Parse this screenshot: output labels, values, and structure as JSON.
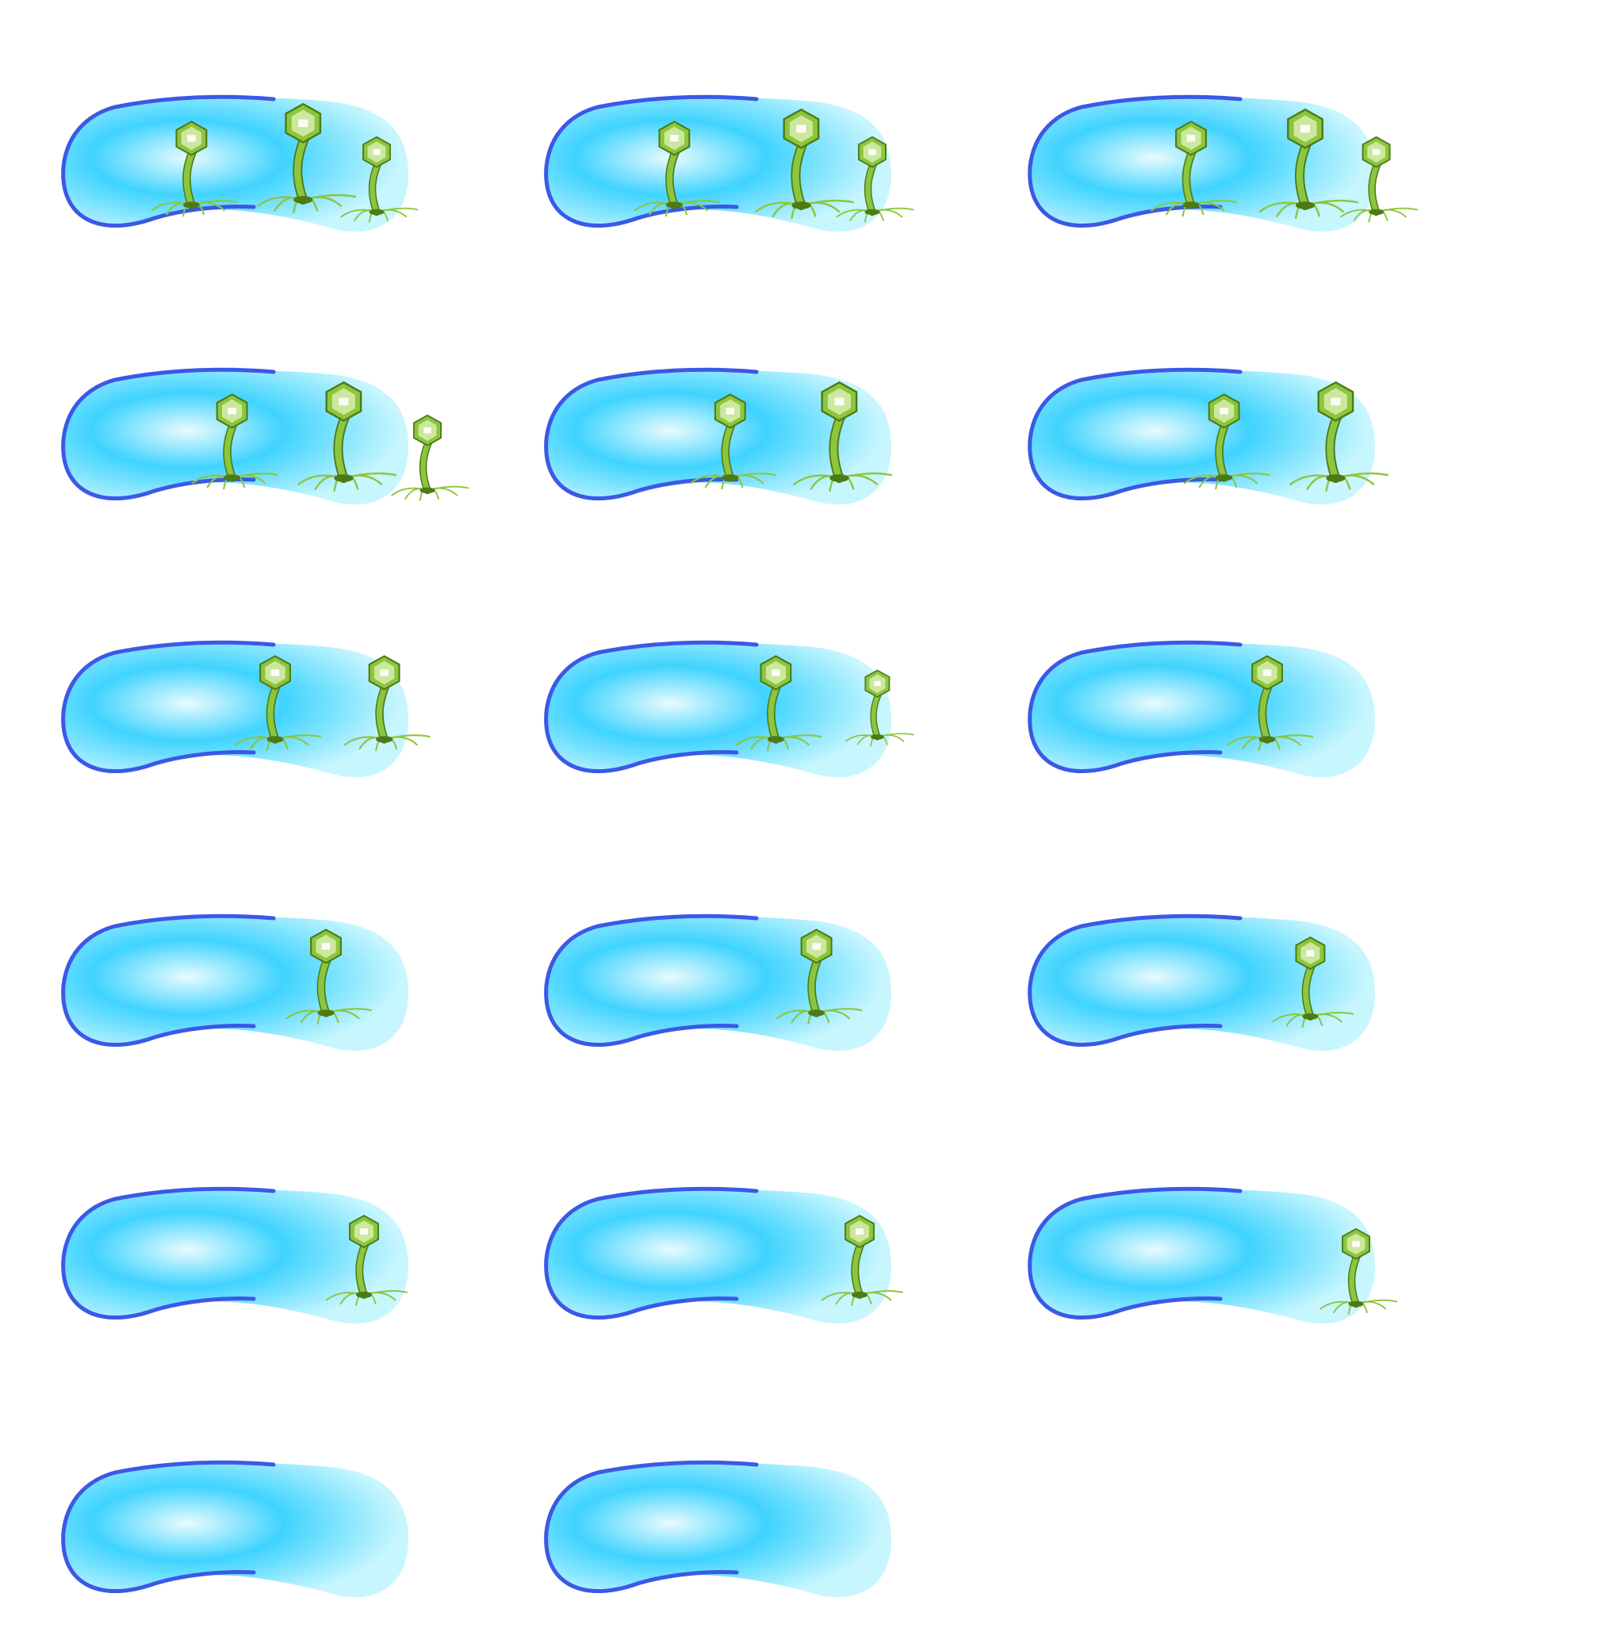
{
  "scene": {
    "description_visible_text": "",
    "colors": {
      "background": "#ffffff",
      "cell_fill_center": "#e8fbff",
      "cell_fill_mid": "#3fd3ff",
      "cell_fill_edge": "#c8f6ff",
      "cell_membrane": "#3b58e6",
      "phage_body": "#8cc63f",
      "phage_dark": "#4e7a14",
      "phage_highlight": "#e8f7c8"
    },
    "icon": "bacteriophage-infecting-bacterium",
    "frames": [
      {
        "phages": [
          [
            0.52,
            0.45,
            1.0
          ],
          [
            0.96,
            0.35,
            1.15
          ],
          [
            1.25,
            0.55,
            0.9
          ]
        ]
      },
      {
        "phages": [
          [
            0.52,
            0.45,
            1.0
          ],
          [
            1.02,
            0.4,
            1.15
          ],
          [
            1.3,
            0.55,
            0.9
          ]
        ]
      },
      {
        "phages": [
          [
            0.65,
            0.45,
            1.0
          ],
          [
            1.1,
            0.4,
            1.15
          ],
          [
            1.38,
            0.55,
            0.9
          ]
        ]
      },
      {
        "phages": [
          [
            0.68,
            0.45,
            1.0
          ],
          [
            1.12,
            0.4,
            1.15
          ],
          [
            1.45,
            0.6,
            0.9
          ]
        ]
      },
      {
        "phages": [
          [
            0.74,
            0.45,
            1.0
          ],
          [
            1.17,
            0.4,
            1.15
          ]
        ]
      },
      {
        "phages": [
          [
            0.78,
            0.45,
            1.0
          ],
          [
            1.22,
            0.4,
            1.15
          ]
        ]
      },
      {
        "phages": [
          [
            0.85,
            0.35,
            1.0
          ],
          [
            1.28,
            0.35,
            1.0
          ]
        ]
      },
      {
        "phages": [
          [
            0.92,
            0.35,
            1.0
          ],
          [
            1.32,
            0.4,
            0.8
          ]
        ]
      },
      {
        "phages": [
          [
            0.95,
            0.35,
            1.0
          ]
        ]
      },
      {
        "phages": [
          [
            1.05,
            0.35,
            1.0
          ]
        ]
      },
      {
        "phages": [
          [
            1.08,
            0.35,
            1.0
          ]
        ]
      },
      {
        "phages": [
          [
            1.12,
            0.4,
            0.95
          ]
        ]
      },
      {
        "phages": [
          [
            1.2,
            0.45,
            0.95
          ]
        ]
      },
      {
        "phages": [
          [
            1.25,
            0.45,
            0.95
          ]
        ]
      },
      {
        "phages": [
          [
            1.3,
            0.55,
            0.9
          ]
        ]
      },
      {
        "phages": []
      },
      {
        "phages": []
      }
    ]
  }
}
